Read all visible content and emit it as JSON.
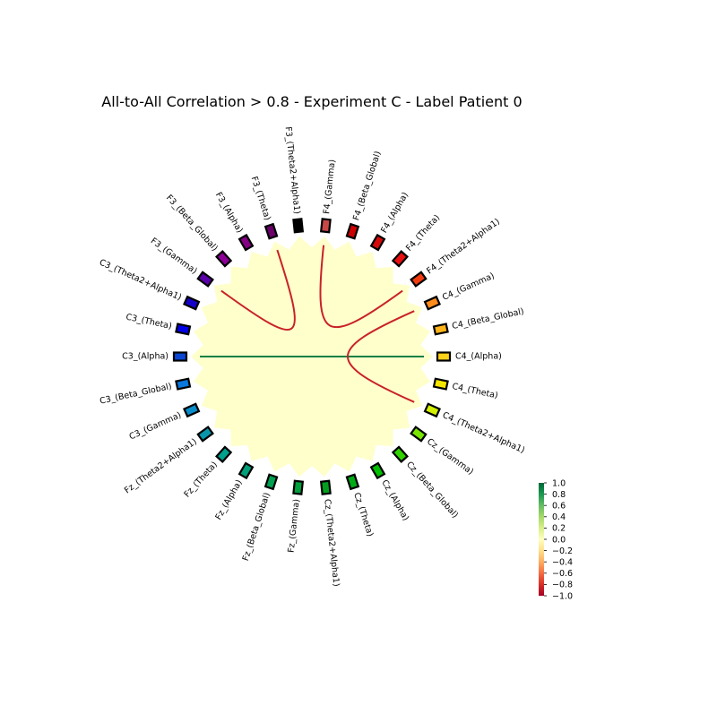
{
  "chart_data": {
    "type": "chord",
    "title": "All-to-All Correlation > 0.8 - Experiment C - Label Patient 0",
    "nodes": [
      {
        "label": "C4_(Alpha)",
        "color": "#ffd21a"
      },
      {
        "label": "C4_(Beta_Global)",
        "color": "#ffb41a"
      },
      {
        "label": "C4_(Gamma)",
        "color": "#ff8c1a"
      },
      {
        "label": "F4_(Theta2+Alpha1)",
        "color": "#f03c0f"
      },
      {
        "label": "F4_(Theta)",
        "color": "#e81010"
      },
      {
        "label": "F4_(Alpha)",
        "color": "#d60a0a"
      },
      {
        "label": "F4_(Beta_Global)",
        "color": "#cc0000"
      },
      {
        "label": "F4_(Gamma)",
        "color": "#c84848"
      },
      {
        "label": "F3_(Theta2+Alpha1)",
        "color": "#000000"
      },
      {
        "label": "F3_(Theta)",
        "color": "#6a006a"
      },
      {
        "label": "F3_(Alpha)",
        "color": "#840084"
      },
      {
        "label": "F3_(Beta_Global)",
        "color": "#8c0096"
      },
      {
        "label": "F3_(Gamma)",
        "color": "#5a00a8"
      },
      {
        "label": "C3_(Theta2+Alpha1)",
        "color": "#1400c8"
      },
      {
        "label": "C3_(Theta)",
        "color": "#0000e6"
      },
      {
        "label": "C3_(Alpha)",
        "color": "#0a46d2"
      },
      {
        "label": "C3_(Beta_Global)",
        "color": "#0a78dc"
      },
      {
        "label": "C3_(Gamma)",
        "color": "#0a8cc8"
      },
      {
        "label": "Fz_(Theta2+Alpha1)",
        "color": "#0a96aa"
      },
      {
        "label": "Fz_(Theta)",
        "color": "#00a08c"
      },
      {
        "label": "Fz_(Alpha)",
        "color": "#00a078"
      },
      {
        "label": "Fz_(Beta_Global)",
        "color": "#00a050"
      },
      {
        "label": "Fz_(Gamma)",
        "color": "#00a03c"
      },
      {
        "label": "Cz_(Theta2+Alpha1)",
        "color": "#00a01e"
      },
      {
        "label": "Cz_(Theta)",
        "color": "#00aa14"
      },
      {
        "label": "Cz_(Alpha)",
        "color": "#00be00"
      },
      {
        "label": "Cz_(Beta_Global)",
        "color": "#32d200"
      },
      {
        "label": "Cz_(Gamma)",
        "color": "#78e600"
      },
      {
        "label": "C4_(Theta2+Alpha1)",
        "color": "#d2f000"
      },
      {
        "label": "C4_(Theta)",
        "color": "#f5e600"
      }
    ],
    "links": [
      {
        "source": "C3_(Alpha)",
        "target": "C4_(Alpha)",
        "value": 0.9
      },
      {
        "source": "C4_(Gamma)",
        "target": "C4_(Theta2+Alpha1)",
        "value": -0.86
      },
      {
        "source": "F4_(Gamma)",
        "target": "F4_(Theta2+Alpha1)",
        "value": -0.86
      },
      {
        "source": "F3_(Theta)",
        "target": "F3_(Gamma)",
        "value": -0.86
      }
    ],
    "background_color": "#ffffcc",
    "colorbar": {
      "colormap": "RdYlGn",
      "range": [
        -1.0,
        1.0
      ],
      "ticks": [
        "1.0",
        "0.8",
        "0.6",
        "0.4",
        "0.2",
        "0.0",
        "−0.2",
        "−0.4",
        "−0.6",
        "−0.8",
        "−1.0"
      ]
    }
  }
}
